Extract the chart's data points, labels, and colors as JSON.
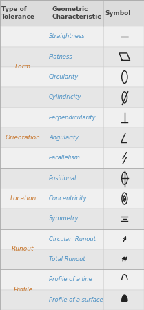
{
  "title_col1": "Type of\nTolerance",
  "title_col2": "Geometric\nCharacteristic",
  "title_col3": "Symbol",
  "bg_color": "#e8e8e8",
  "col1_color": "#c87830",
  "col2_color": "#4a90c4",
  "header_text_color": "#444444",
  "groups": [
    {
      "name": "Form",
      "rows": [
        "Straightness",
        "Flatness",
        "Circularity",
        "Cylindricity"
      ]
    },
    {
      "name": "Orientation",
      "rows": [
        "Perpendicularity",
        "Angularity",
        "Parallelism"
      ]
    },
    {
      "name": "Location",
      "rows": [
        "Positional",
        "Concentricity",
        "Symmetry"
      ]
    },
    {
      "name": "Runout",
      "rows": [
        "Circular  Runout",
        "Total Runout"
      ]
    },
    {
      "name": "Profile",
      "rows": [
        "Profile of a line",
        "Profile of a surface"
      ]
    }
  ],
  "font_size_header": 6.5,
  "font_size_group": 6.5,
  "font_size_row": 6.0
}
